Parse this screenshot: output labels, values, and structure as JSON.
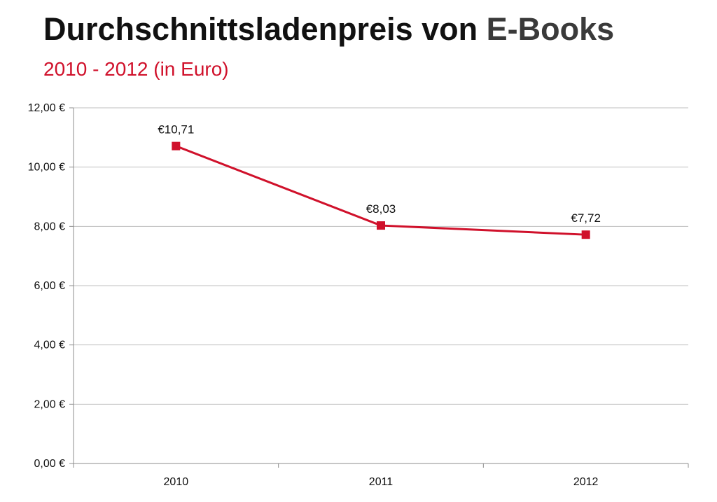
{
  "title": {
    "main": "Durchschnittsladenpreis von ",
    "accent": "E-Books"
  },
  "subtitle": "2010 - 2012 (in Euro)",
  "colors": {
    "accent": "#d0112b",
    "grid": "#bfbfbf",
    "axis": "#8c8c8c",
    "text": "#111111"
  },
  "chart_data": {
    "type": "line",
    "categories": [
      "2010",
      "2011",
      "2012"
    ],
    "series": [
      {
        "values": [
          10.71,
          8.03,
          7.72
        ],
        "color": "#d0112b",
        "marker": "square"
      }
    ],
    "data_labels": [
      "€10,71",
      "€8,03",
      "€7,72"
    ],
    "y_ticks": [
      0,
      2,
      4,
      6,
      8,
      10,
      12
    ],
    "y_tick_labels": [
      "0,00 €",
      "2,00 €",
      "4,00 €",
      "6,00 €",
      "8,00 €",
      "10,00 €",
      "12,00 €"
    ],
    "ylim": [
      0,
      12
    ],
    "xlabel": "",
    "ylabel": "",
    "grid": true,
    "legend": "none"
  }
}
